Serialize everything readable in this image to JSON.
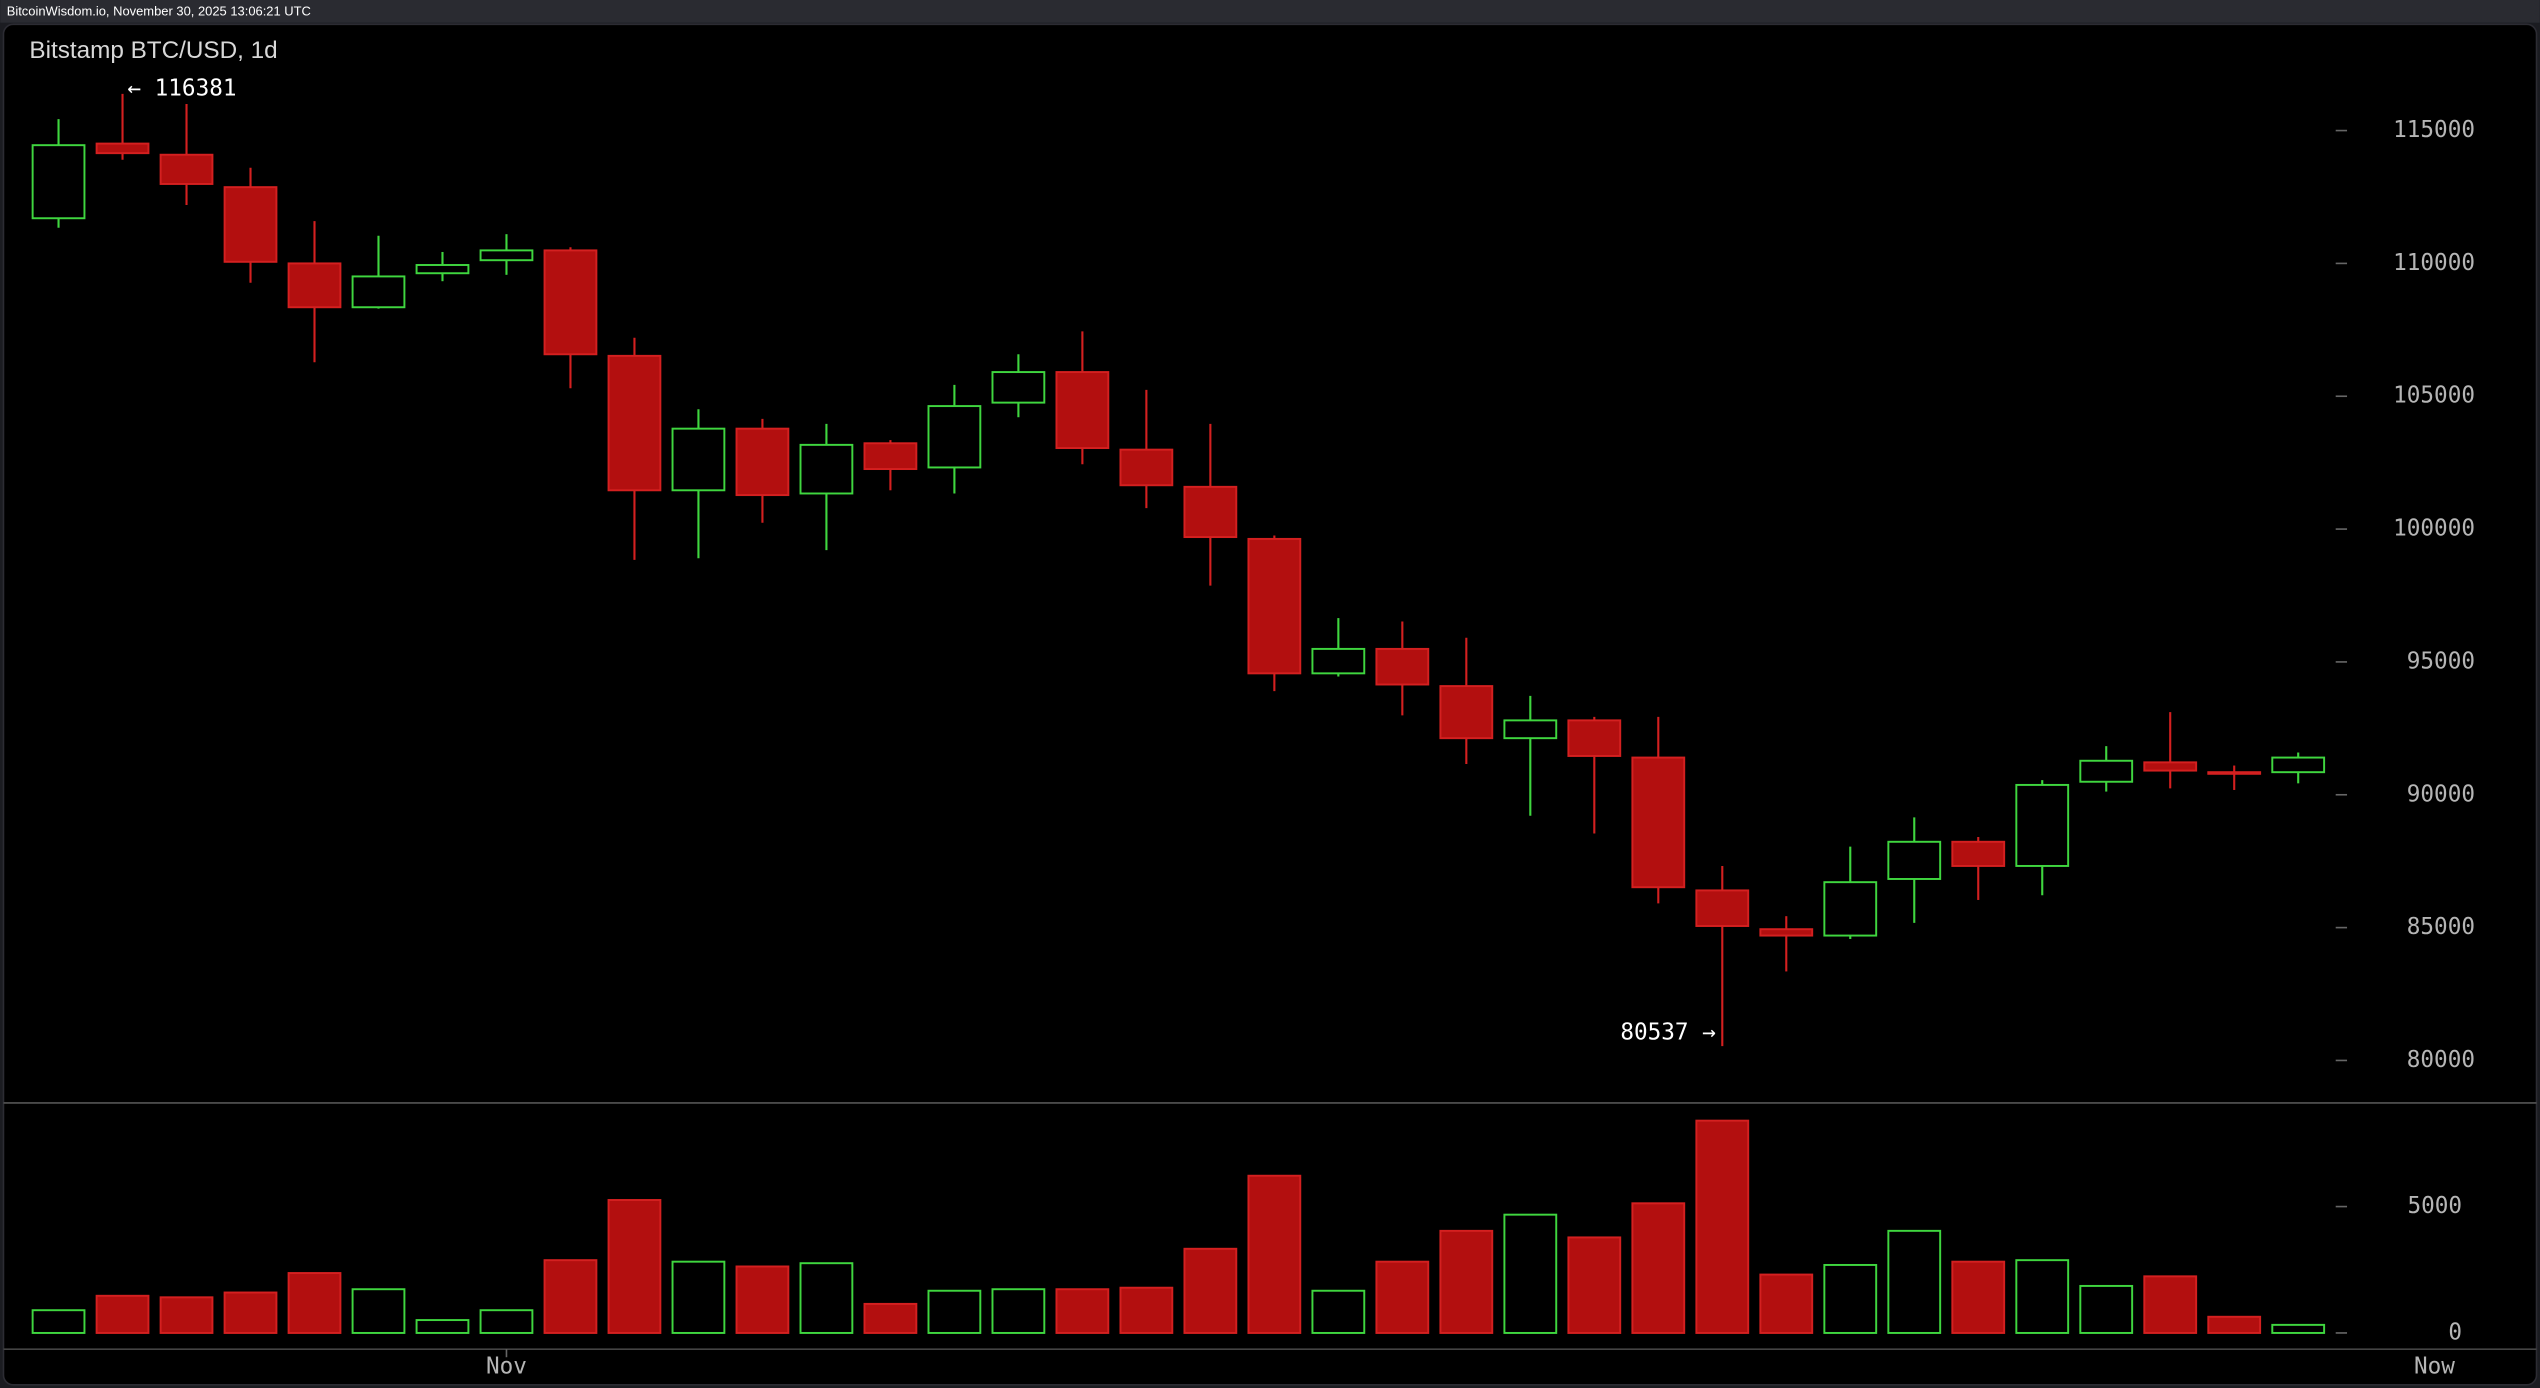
{
  "chart_data": {
    "type": "candlestick",
    "source": "BitcoinWisdom.io, November 30, 2025 13:06:21 UTC",
    "title": "Bitstamp BTC/USD, 1d",
    "categories": [
      null,
      null,
      null,
      null,
      null,
      null,
      null,
      "Nov",
      null,
      null,
      null,
      null,
      null,
      null,
      null,
      null,
      null,
      null,
      null,
      null,
      null,
      null,
      null,
      null,
      null,
      null,
      null,
      null,
      null,
      null,
      null,
      null,
      null,
      null,
      null,
      null
    ],
    "x_end_label": "Now",
    "open": [
      111700,
      114510,
      114090,
      112870,
      110000,
      108350,
      109630,
      110120,
      110490,
      106520,
      101460,
      103780,
      101340,
      103230,
      102320,
      104760,
      105910,
      102990,
      101590,
      99630,
      94570,
      95490,
      94090,
      92130,
      92800,
      91400,
      86400,
      84940,
      84700,
      86830,
      88230,
      87320,
      90490,
      91220,
      90850,
      90850
    ],
    "high": [
      115430,
      116381,
      116000,
      113600,
      111590,
      111040,
      110430,
      111100,
      110610,
      107200,
      104510,
      104150,
      103960,
      103350,
      105430,
      106580,
      107440,
      105240,
      103960,
      99760,
      96650,
      96520,
      95910,
      93720,
      92930,
      92930,
      87320,
      85430,
      88050,
      89150,
      88410,
      90550,
      91830,
      93110,
      91100,
      91590
    ],
    "low": [
      111340,
      113900,
      112200,
      109270,
      106280,
      108300,
      109330,
      109570,
      105300,
      98840,
      98900,
      100240,
      99210,
      101460,
      101340,
      104210,
      102440,
      100790,
      97870,
      93900,
      94450,
      92990,
      91160,
      89210,
      88540,
      85910,
      80537,
      83350,
      84570,
      85180,
      86040,
      86220,
      90120,
      90240,
      90180,
      90430
    ],
    "close": [
      114450,
      114150,
      112990,
      110060,
      108350,
      109510,
      109940,
      110490,
      106580,
      101460,
      103780,
      101280,
      103170,
      102260,
      104630,
      105910,
      103050,
      101650,
      99700,
      94570,
      95490,
      94150,
      92130,
      92800,
      91460,
      86520,
      85060,
      84700,
      86710,
      88230,
      87320,
      90370,
      91280,
      90910,
      90790,
      91400
    ],
    "volume": [
      900,
      1470,
      1410,
      1600,
      2370,
      1730,
      510,
      900,
      2880,
      5260,
      2820,
      2630,
      2760,
      1150,
      1670,
      1730,
      1730,
      1790,
      3330,
      6220,
      1670,
      2820,
      4040,
      4680,
      3780,
      5130,
      8400,
      2310,
      2690,
      4040,
      2820,
      2880,
      1860,
      2240,
      640,
      320
    ],
    "up_color": "#3fd63f",
    "down_color": "#b30f0f",
    "ylim": [
      78400,
      119000
    ],
    "yticks": [
      80000,
      85000,
      90000,
      95000,
      100000,
      105000,
      110000,
      115000
    ],
    "y2lim": [
      -640,
      9100
    ],
    "y2ticks": [
      0,
      5000
    ],
    "annotations": [
      {
        "value": 116381,
        "label": "← 116381"
      },
      {
        "value": 80537,
        "label": "80537 →"
      }
    ]
  }
}
